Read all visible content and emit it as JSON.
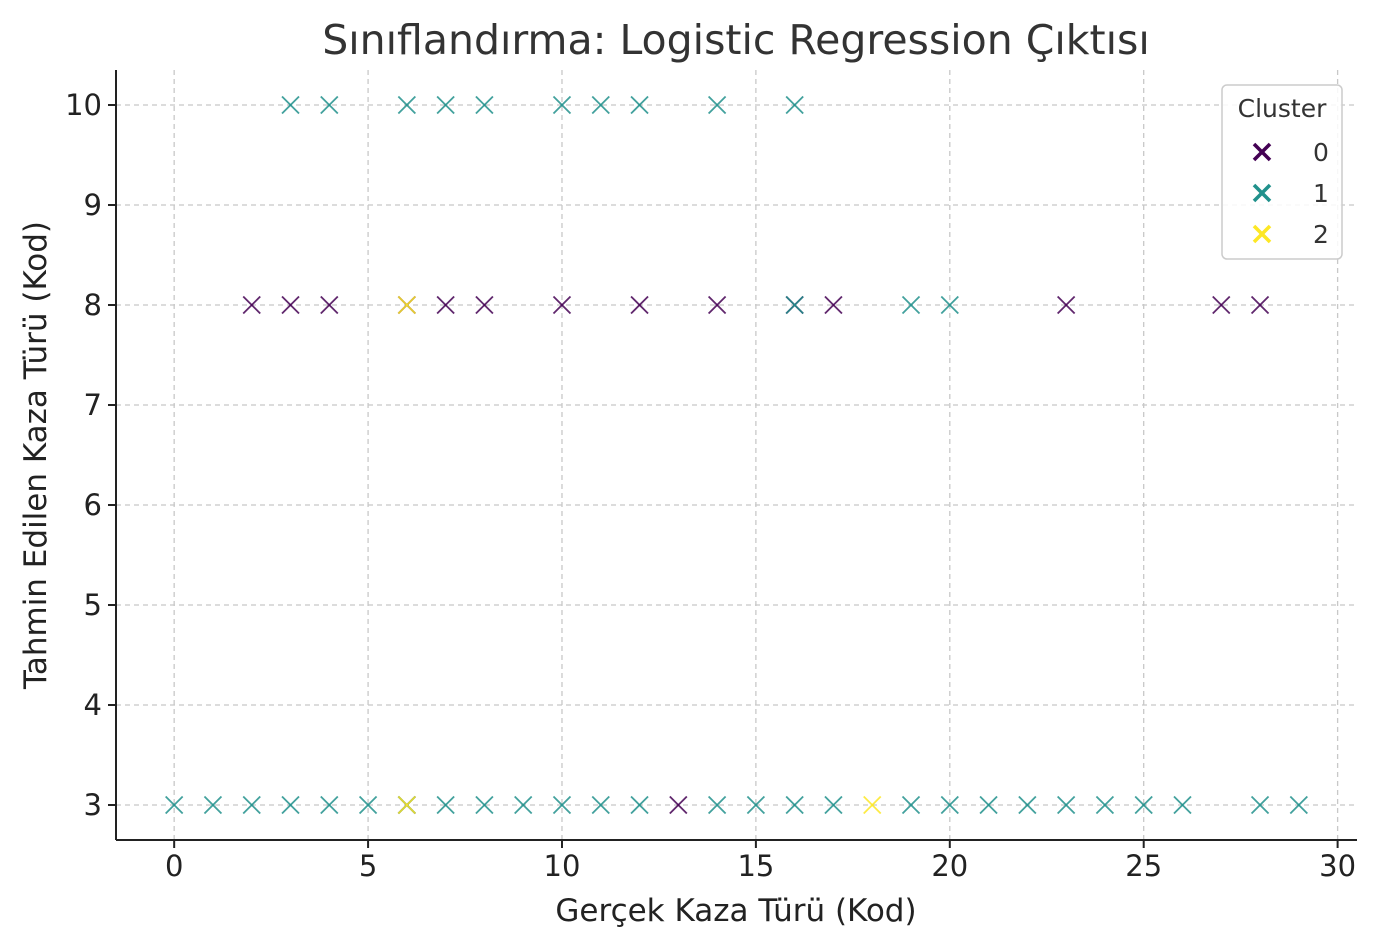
{
  "chart_data": {
    "type": "scatter",
    "title": "Sınıflandırma: Logistic Regression Çıktısı",
    "xlabel": "Gerçek Kaza Türü (Kod)",
    "ylabel": "Tahmin Edilen Kaza Türü (Kod)",
    "xlim": [
      -1.5,
      30.5
    ],
    "ylim": [
      2.65,
      10.35
    ],
    "xticks": [
      "0",
      "5",
      "10",
      "15",
      "20",
      "25",
      "30"
    ],
    "yticks": [
      "3",
      "4",
      "5",
      "6",
      "7",
      "8",
      "9",
      "10"
    ],
    "grid": true,
    "marker": "x",
    "legend": {
      "title": "Cluster",
      "placement": "top-right",
      "entries": [
        "0",
        "1",
        "2"
      ]
    },
    "colors": {
      "0": "#440154",
      "1": "#21918c",
      "2": "#fde725"
    },
    "series": [
      {
        "name": "0",
        "points": [
          [
            2,
            8
          ],
          [
            3,
            8
          ],
          [
            4,
            8
          ],
          [
            6,
            8
          ],
          [
            7,
            8
          ],
          [
            8,
            8
          ],
          [
            10,
            8
          ],
          [
            12,
            8
          ],
          [
            14,
            8
          ],
          [
            16,
            8
          ],
          [
            17,
            8
          ],
          [
            23,
            8
          ],
          [
            27,
            8
          ],
          [
            28,
            8
          ],
          [
            6,
            3
          ],
          [
            13,
            3
          ]
        ]
      },
      {
        "name": "1",
        "points": [
          [
            3,
            10
          ],
          [
            4,
            10
          ],
          [
            6,
            10
          ],
          [
            7,
            10
          ],
          [
            8,
            10
          ],
          [
            10,
            10
          ],
          [
            11,
            10
          ],
          [
            12,
            10
          ],
          [
            14,
            10
          ],
          [
            16,
            10
          ],
          [
            16,
            8
          ],
          [
            19,
            8
          ],
          [
            20,
            8
          ],
          [
            0,
            3
          ],
          [
            1,
            3
          ],
          [
            2,
            3
          ],
          [
            3,
            3
          ],
          [
            4,
            3
          ],
          [
            5,
            3
          ],
          [
            6,
            3
          ],
          [
            7,
            3
          ],
          [
            8,
            3
          ],
          [
            9,
            3
          ],
          [
            10,
            3
          ],
          [
            11,
            3
          ],
          [
            12,
            3
          ],
          [
            14,
            3
          ],
          [
            15,
            3
          ],
          [
            16,
            3
          ],
          [
            17,
            3
          ],
          [
            19,
            3
          ],
          [
            20,
            3
          ],
          [
            21,
            3
          ],
          [
            22,
            3
          ],
          [
            23,
            3
          ],
          [
            24,
            3
          ],
          [
            25,
            3
          ],
          [
            26,
            3
          ],
          [
            28,
            3
          ],
          [
            29,
            3
          ]
        ]
      },
      {
        "name": "2",
        "points": [
          [
            6,
            8
          ],
          [
            6,
            3
          ],
          [
            18,
            3
          ]
        ]
      }
    ]
  }
}
